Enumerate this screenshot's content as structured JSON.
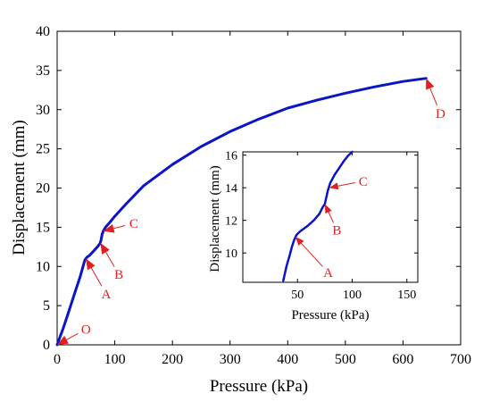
{
  "chart_data": [
    {
      "type": "line",
      "xlabel": "Pressure (kPa)",
      "ylabel": "Displacement (mm)",
      "xlim": [
        0,
        700
      ],
      "ylim": [
        0,
        40
      ],
      "xticks": [
        0,
        100,
        200,
        300,
        400,
        500,
        600,
        700
      ],
      "yticks": [
        0,
        5,
        10,
        15,
        20,
        25,
        30,
        35,
        40
      ],
      "grid": false,
      "line_color": "#0a14c8",
      "annotation_color": "#e02020",
      "series": [
        {
          "x": [
            0,
            5,
            10,
            20,
            30,
            40,
            48,
            52,
            56,
            60,
            65,
            70,
            74,
            76,
            77,
            78,
            80,
            84,
            90,
            100,
            120,
            150,
            200,
            250,
            300,
            350,
            400,
            450,
            500,
            550,
            600,
            640
          ],
          "y": [
            0,
            1,
            2,
            4.2,
            6.5,
            8.7,
            10.8,
            11.2,
            11.4,
            11.7,
            12.1,
            12.5,
            12.9,
            13.3,
            13.7,
            14.1,
            14.5,
            15,
            15.5,
            16.4,
            18,
            20.3,
            23,
            25.3,
            27.2,
            28.8,
            30.2,
            31.2,
            32.1,
            32.9,
            33.6,
            34
          ]
        }
      ],
      "annotations": [
        {
          "label": "O",
          "x": 0,
          "y": 0,
          "text_x": 50,
          "text_y": 2
        },
        {
          "label": "A",
          "x": 50,
          "y": 11,
          "text_x": 85,
          "text_y": 6.5
        },
        {
          "label": "B",
          "x": 75,
          "y": 13,
          "text_x": 107,
          "text_y": 9
        },
        {
          "label": "C",
          "x": 80,
          "y": 14.5,
          "text_x": 133,
          "text_y": 15.5
        },
        {
          "label": "D",
          "x": 640,
          "y": 34,
          "text_x": 665,
          "text_y": 29.5
        }
      ]
    },
    {
      "type": "line",
      "inset": true,
      "xlabel": "Pressure (kPa)",
      "ylabel": "Displacement (mm)",
      "xlim": [
        0,
        160
      ],
      "ylim": [
        8.2,
        16.2
      ],
      "xticks": [
        50,
        100,
        150
      ],
      "yticks": [
        10,
        12,
        14,
        16
      ],
      "grid": false,
      "line_color": "#0a14c8",
      "series": [
        {
          "x": [
            37,
            40,
            43,
            45,
            47,
            49,
            52,
            56,
            60,
            65,
            70,
            73,
            75,
            76,
            77,
            78,
            79,
            80,
            84,
            88,
            92,
            96,
            100
          ],
          "y": [
            8.3,
            9.2,
            9.9,
            10.4,
            10.8,
            11.1,
            11.3,
            11.5,
            11.7,
            12,
            12.4,
            12.8,
            13,
            13.3,
            13.6,
            13.9,
            14.1,
            14.3,
            14.8,
            15.2,
            15.6,
            15.95,
            16.2
          ]
        }
      ],
      "annotations": [
        {
          "label": "A",
          "x": 48,
          "y": 11,
          "text_x": 78,
          "text_y": 8.8
        },
        {
          "label": "B",
          "x": 75,
          "y": 13,
          "text_x": 86,
          "text_y": 11.4
        },
        {
          "label": "C",
          "x": 79,
          "y": 14,
          "text_x": 110,
          "text_y": 14.4
        }
      ]
    }
  ]
}
